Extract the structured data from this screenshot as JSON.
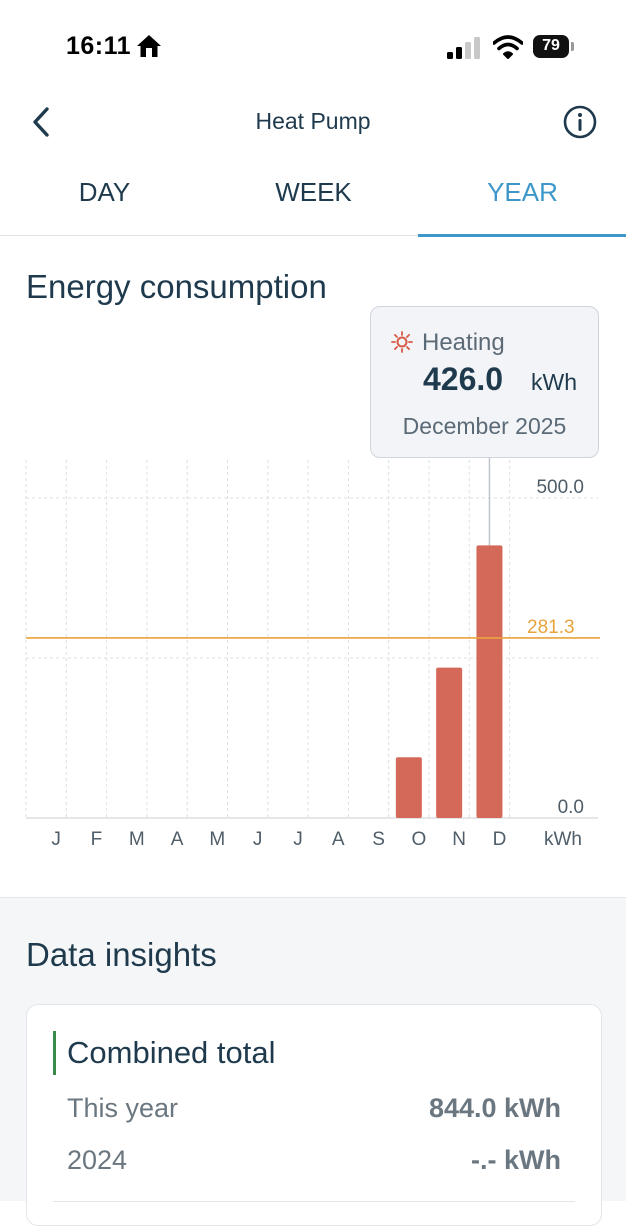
{
  "status_bar": {
    "time": "16:11",
    "battery": "79"
  },
  "header": {
    "title": "Heat Pump"
  },
  "tabs": [
    {
      "label": "DAY",
      "active": false
    },
    {
      "label": "WEEK",
      "active": false
    },
    {
      "label": "YEAR",
      "active": true
    }
  ],
  "energy": {
    "title": "Energy consumption",
    "tooltip": {
      "label": "Heating",
      "value": "426.0",
      "unit": "kWh",
      "date": "December 2025"
    }
  },
  "chart_data": {
    "type": "bar",
    "categories": [
      "J",
      "F",
      "M",
      "A",
      "M",
      "J",
      "J",
      "A",
      "S",
      "O",
      "N",
      "D"
    ],
    "series": [
      {
        "name": "Heating",
        "values": [
          0,
          0,
          0,
          0,
          0,
          0,
          0,
          0,
          0,
          95,
          235,
          426
        ],
        "color": "#d4695a"
      }
    ],
    "ylim": [
      0,
      500
    ],
    "y_tick_labels": [
      {
        "value": 500,
        "label": "500.0"
      },
      {
        "value": 0,
        "label": "0.0"
      }
    ],
    "unit_label": "kWh",
    "average": {
      "value": 281.3,
      "label": "281.3",
      "color": "#e8a33c"
    },
    "selected_index": 11,
    "grid": true
  },
  "insights": {
    "title": "Data insights",
    "card": {
      "title": "Combined total",
      "rows": [
        {
          "label": "This year",
          "value": "844.0 kWh"
        },
        {
          "label": "2024",
          "value": "-.- kWh"
        }
      ]
    }
  }
}
